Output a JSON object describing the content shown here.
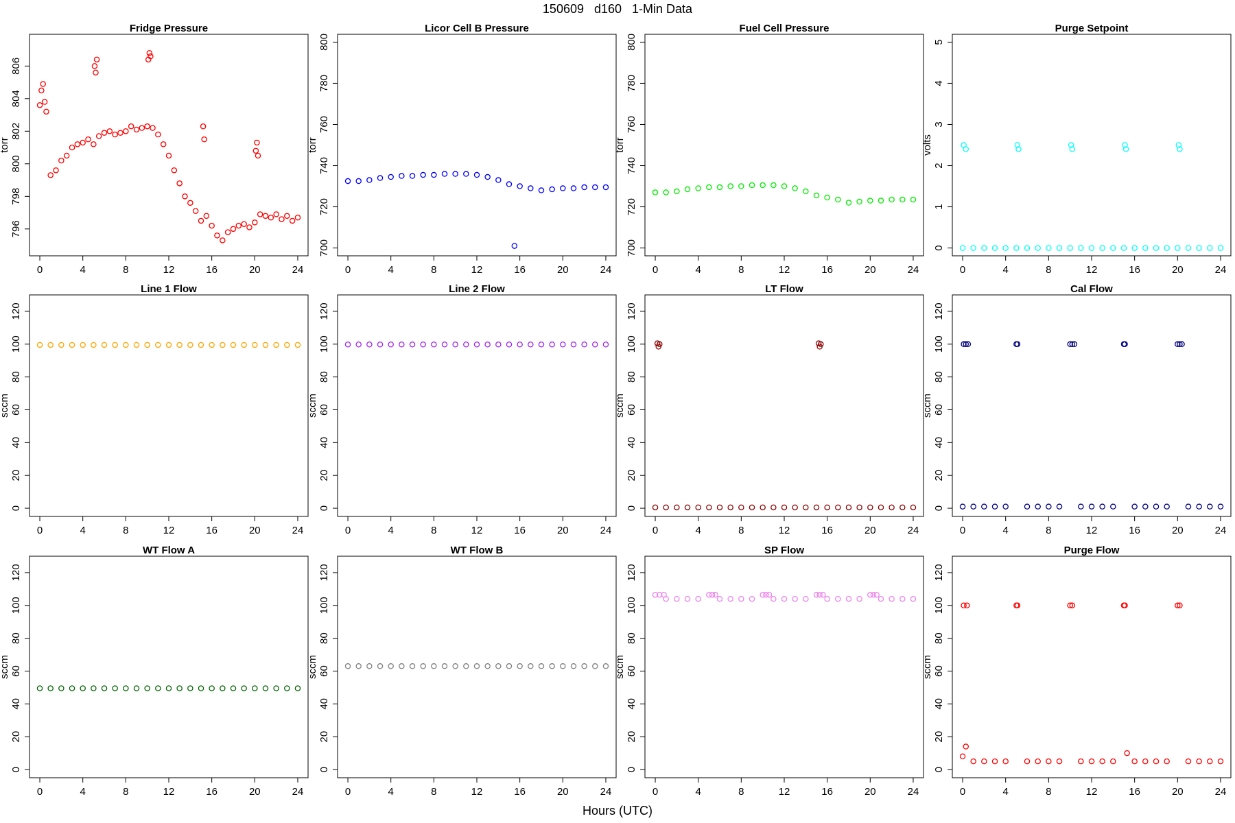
{
  "title": "150609   d160   1-Min Data",
  "xlabel": "Hours (UTC)",
  "chart_data": [
    {
      "type": "scatter",
      "title": "Fridge Pressure",
      "ylabel": "torr",
      "color": "red",
      "x": [
        0,
        0.15,
        0.3,
        0.45,
        0.6,
        1,
        1.5,
        2,
        2.5,
        3,
        3.5,
        4,
        4.5,
        5,
        5.1,
        5.2,
        5.3,
        5.5,
        6,
        6.5,
        7,
        7.5,
        8,
        8.5,
        9,
        9.5,
        10,
        10.1,
        10.2,
        10.3,
        10.5,
        11,
        11.5,
        12,
        12.5,
        13,
        13.5,
        14,
        14.5,
        15,
        15.2,
        15.3,
        15.5,
        16,
        16.5,
        17,
        17.5,
        18,
        18.5,
        19,
        19.5,
        20,
        20.1,
        20.2,
        20.3,
        20.5,
        21,
        21.5,
        22,
        22.5,
        23,
        23.5,
        24
      ],
      "values": [
        803.6,
        804.5,
        804.9,
        803.8,
        803.2,
        799.3,
        799.6,
        800.2,
        800.5,
        801,
        801.2,
        801.3,
        801.5,
        801.2,
        806,
        805.6,
        806.4,
        801.7,
        801.9,
        802,
        801.8,
        801.9,
        802,
        802.3,
        802.1,
        802.2,
        802.3,
        806.4,
        806.8,
        806.6,
        802.2,
        801.8,
        801.2,
        800.5,
        799.6,
        798.8,
        798,
        797.6,
        797.1,
        796.5,
        802.3,
        801.5,
        796.8,
        796.2,
        795.6,
        795.3,
        795.8,
        796,
        796.2,
        796.3,
        796.1,
        796.4,
        800.8,
        801.3,
        800.5,
        796.9,
        796.8,
        796.7,
        796.9,
        796.6,
        796.8,
        796.5,
        796.7
      ],
      "xlim": [
        -0.96,
        24.96
      ],
      "xticks": [
        0,
        4,
        8,
        12,
        16,
        20,
        24
      ],
      "ylim": [
        794.35,
        807.95
      ],
      "yticks": [
        796,
        798,
        800,
        802,
        804,
        806
      ]
    },
    {
      "type": "scatter",
      "title": "Licor Cell B Pressure",
      "ylabel": "torr",
      "color": "blue",
      "x": [
        0,
        1,
        2,
        3,
        4,
        5,
        6,
        7,
        8,
        9,
        10,
        11,
        12,
        13,
        14,
        15,
        15.5,
        16,
        17,
        18,
        19,
        20,
        21,
        22,
        23,
        24
      ],
      "values": [
        732.5,
        732.5,
        733,
        734,
        734.5,
        735,
        735,
        735.5,
        735.5,
        736,
        736,
        736,
        735.5,
        734.5,
        733,
        731,
        701,
        730,
        729,
        728,
        728.5,
        729,
        729,
        729.5,
        729.5,
        729.5
      ],
      "xlim": [
        -0.96,
        24.96
      ],
      "xticks": [
        0,
        4,
        8,
        12,
        16,
        20,
        24
      ],
      "ylim": [
        696.2,
        803.8
      ],
      "yticks": [
        700,
        720,
        740,
        760,
        780,
        800
      ]
    },
    {
      "type": "scatter",
      "title": "Fuel Cell Pressure",
      "ylabel": "torr",
      "color": "#00ee00",
      "x": [
        0,
        1,
        2,
        3,
        4,
        5,
        6,
        7,
        8,
        9,
        10,
        11,
        12,
        13,
        14,
        15,
        16,
        17,
        18,
        19,
        20,
        21,
        22,
        23,
        24
      ],
      "values": [
        727,
        727,
        727.5,
        728.5,
        729,
        729.5,
        729.5,
        730,
        730,
        730.5,
        730.5,
        730.5,
        730,
        729,
        727.5,
        725.5,
        724.5,
        723.5,
        722,
        722.5,
        723,
        723,
        723.5,
        723.5,
        723.5
      ],
      "xlim": [
        -0.96,
        24.96
      ],
      "xticks": [
        0,
        4,
        8,
        12,
        16,
        20,
        24
      ],
      "ylim": [
        696.2,
        803.8
      ],
      "yticks": [
        700,
        720,
        740,
        760,
        780,
        800
      ]
    },
    {
      "type": "scatter",
      "title": "Purge Setpoint",
      "ylabel": "volts",
      "color": "cyan",
      "x": [
        0,
        0.1,
        0.3,
        1,
        2,
        3,
        4,
        5,
        5.1,
        5.2,
        6,
        7,
        8,
        9,
        10,
        10.1,
        10.2,
        11,
        12,
        13,
        14,
        15,
        15.1,
        15.2,
        16,
        17,
        18,
        19,
        20,
        20.1,
        20.2,
        21,
        22,
        23,
        24
      ],
      "values": [
        0,
        2.5,
        2.4,
        0,
        0,
        0,
        0,
        0,
        2.5,
        2.4,
        0,
        0,
        0,
        0,
        0,
        2.5,
        2.4,
        0,
        0,
        0,
        0,
        0,
        2.5,
        2.4,
        0,
        0,
        0,
        0,
        0,
        2.5,
        2.4,
        0,
        0,
        0,
        0
      ],
      "xlim": [
        -0.96,
        24.96
      ],
      "xticks": [
        0,
        4,
        8,
        12,
        16,
        20,
        24
      ],
      "ylim": [
        -0.19,
        5.19
      ],
      "yticks": [
        0,
        1,
        2,
        3,
        4,
        5
      ]
    },
    {
      "type": "scatter",
      "title": "Line 1 Flow",
      "ylabel": "sccm",
      "color": "orange",
      "x": [
        0,
        1,
        2,
        3,
        4,
        5,
        6,
        7,
        8,
        9,
        10,
        11,
        12,
        13,
        14,
        15,
        16,
        17,
        18,
        19,
        20,
        21,
        22,
        23,
        24
      ],
      "values": [
        99.5,
        99.5,
        99.5,
        99.5,
        99.5,
        99.5,
        99.5,
        99.5,
        99.5,
        99.5,
        99.5,
        99.5,
        99.5,
        99.5,
        99.5,
        99.5,
        99.5,
        99.5,
        99.5,
        99.5,
        99.5,
        99.5,
        99.5,
        99.5,
        99.5
      ],
      "xlim": [
        -0.96,
        24.96
      ],
      "xticks": [
        0,
        4,
        8,
        12,
        16,
        20,
        24
      ],
      "ylim": [
        -5,
        130
      ],
      "yticks": [
        0,
        20,
        40,
        60,
        80,
        100,
        120
      ]
    },
    {
      "type": "scatter",
      "title": "Line 2 Flow",
      "ylabel": "sccm",
      "color": "#a020f0",
      "x": [
        0,
        1,
        2,
        3,
        4,
        5,
        6,
        7,
        8,
        9,
        10,
        11,
        12,
        13,
        14,
        15,
        16,
        17,
        18,
        19,
        20,
        21,
        22,
        23,
        24
      ],
      "values": [
        99.8,
        99.8,
        99.8,
        99.8,
        99.8,
        99.8,
        99.8,
        99.8,
        99.8,
        99.8,
        99.8,
        99.8,
        99.8,
        99.8,
        99.8,
        99.8,
        99.8,
        99.8,
        99.8,
        99.8,
        99.8,
        99.8,
        99.8,
        99.8,
        99.8
      ],
      "xlim": [
        -0.96,
        24.96
      ],
      "xticks": [
        0,
        4,
        8,
        12,
        16,
        20,
        24
      ],
      "ylim": [
        -5,
        130
      ],
      "yticks": [
        0,
        20,
        40,
        60,
        80,
        100,
        120
      ]
    },
    {
      "type": "scatter",
      "title": "LT Flow",
      "ylabel": "sccm",
      "color": "darkred",
      "x": [
        0,
        0.2,
        0.3,
        0.4,
        1,
        2,
        3,
        4,
        5,
        6,
        7,
        8,
        9,
        10,
        11,
        12,
        13,
        14,
        15,
        15.2,
        15.3,
        15.4,
        16,
        17,
        18,
        19,
        20,
        21,
        22,
        23,
        24
      ],
      "values": [
        0.5,
        100.5,
        98.5,
        100,
        0.5,
        0.5,
        0.5,
        0.5,
        0.5,
        0.5,
        0.5,
        0.5,
        0.5,
        0.5,
        0.5,
        0.5,
        0.5,
        0.5,
        0.5,
        100.5,
        98.5,
        100,
        0.5,
        0.5,
        0.5,
        0.5,
        0.5,
        0.5,
        0.5,
        0.5,
        0.5
      ],
      "xlim": [
        -0.96,
        24.96
      ],
      "xticks": [
        0,
        4,
        8,
        12,
        16,
        20,
        24
      ],
      "ylim": [
        -5,
        130
      ],
      "yticks": [
        0,
        20,
        40,
        60,
        80,
        100,
        120
      ]
    },
    {
      "type": "scatter",
      "title": "Cal Flow",
      "ylabel": "sccm",
      "color": "navy",
      "x": [
        0,
        0.1,
        0.3,
        0.5,
        1,
        2,
        3,
        4,
        5,
        5.1,
        6,
        7,
        8,
        9,
        10,
        10.2,
        10.4,
        11,
        12,
        13,
        14,
        15,
        15.1,
        16,
        17,
        18,
        19,
        20,
        20.2,
        20.4,
        21,
        22,
        23,
        24
      ],
      "values": [
        1,
        100,
        100,
        100,
        1,
        1,
        1,
        1,
        100,
        100,
        1,
        1,
        1,
        1,
        100,
        100,
        100,
        1,
        1,
        1,
        1,
        100,
        100,
        1,
        1,
        1,
        1,
        100,
        100,
        100,
        1,
        1,
        1,
        1
      ],
      "xlim": [
        -0.96,
        24.96
      ],
      "xticks": [
        0,
        4,
        8,
        12,
        16,
        20,
        24
      ],
      "ylim": [
        -5,
        130
      ],
      "yticks": [
        0,
        20,
        40,
        60,
        80,
        100,
        120
      ]
    },
    {
      "type": "scatter",
      "title": "WT Flow A",
      "ylabel": "sccm",
      "color": "darkgreen",
      "x": [
        0,
        1,
        2,
        3,
        4,
        5,
        6,
        7,
        8,
        9,
        10,
        11,
        12,
        13,
        14,
        15,
        16,
        17,
        18,
        19,
        20,
        21,
        22,
        23,
        24
      ],
      "values": [
        49.5,
        49.5,
        49.5,
        49.5,
        49.5,
        49.5,
        49.5,
        49.5,
        49.5,
        49.5,
        49.5,
        49.5,
        49.5,
        49.5,
        49.5,
        49.5,
        49.5,
        49.5,
        49.5,
        49.5,
        49.5,
        49.5,
        49.5,
        49.5,
        49.5
      ],
      "xlim": [
        -0.96,
        24.96
      ],
      "xticks": [
        0,
        4,
        8,
        12,
        16,
        20,
        24
      ],
      "ylim": [
        -5,
        130
      ],
      "yticks": [
        0,
        20,
        40,
        60,
        80,
        100,
        120
      ]
    },
    {
      "type": "scatter",
      "title": "WT Flow B",
      "ylabel": "sccm",
      "color": "gray",
      "x": [
        0,
        1,
        2,
        3,
        4,
        5,
        6,
        7,
        8,
        9,
        10,
        11,
        12,
        13,
        14,
        15,
        16,
        17,
        18,
        19,
        20,
        21,
        22,
        23,
        24
      ],
      "values": [
        63,
        63,
        63,
        63,
        63,
        63,
        63,
        63,
        63,
        63,
        63,
        63,
        63,
        63,
        63,
        63,
        63,
        63,
        63,
        63,
        63,
        63,
        63,
        63,
        63
      ],
      "xlim": [
        -0.96,
        24.96
      ],
      "xticks": [
        0,
        4,
        8,
        12,
        16,
        20,
        24
      ],
      "ylim": [
        -5,
        130
      ],
      "yticks": [
        0,
        20,
        40,
        60,
        80,
        100,
        120
      ]
    },
    {
      "type": "scatter",
      "title": "SP Flow",
      "ylabel": "sccm",
      "color": "violet",
      "x": [
        0,
        0.4,
        0.8,
        1,
        2,
        3,
        4,
        5,
        5.3,
        5.6,
        6,
        7,
        8,
        9,
        10,
        10.3,
        10.6,
        11,
        12,
        13,
        14,
        15,
        15.3,
        15.6,
        16,
        17,
        18,
        19,
        20,
        20.3,
        20.6,
        21,
        22,
        23,
        24
      ],
      "values": [
        106.5,
        106.5,
        106.5,
        104,
        104,
        104,
        104,
        106.5,
        106.5,
        106.5,
        104,
        104,
        104,
        104,
        106.5,
        106.5,
        106.5,
        104,
        104,
        104,
        104,
        106.5,
        106.5,
        106.5,
        104,
        104,
        104,
        104,
        106.5,
        106.5,
        106.5,
        104,
        104,
        104,
        104
      ],
      "xlim": [
        -0.96,
        24.96
      ],
      "xticks": [
        0,
        4,
        8,
        12,
        16,
        20,
        24
      ],
      "ylim": [
        -5,
        130
      ],
      "yticks": [
        0,
        20,
        40,
        60,
        80,
        100,
        120
      ]
    },
    {
      "type": "scatter",
      "title": "Purge Flow",
      "ylabel": "sccm",
      "color": "red",
      "x": [
        0,
        0.1,
        0.3,
        0.4,
        1,
        2,
        3,
        4,
        5,
        5.1,
        6,
        7,
        8,
        9,
        10,
        10.2,
        11,
        12,
        13,
        14,
        15,
        15.1,
        15.3,
        16,
        17,
        18,
        19,
        20,
        20.2,
        21,
        22,
        23,
        24
      ],
      "values": [
        8,
        100,
        14,
        100,
        5,
        5,
        5,
        5,
        100,
        100,
        5,
        5,
        5,
        5,
        100,
        100,
        5,
        5,
        5,
        5,
        100,
        100,
        10,
        5,
        5,
        5,
        5,
        100,
        100,
        5,
        5,
        5,
        5
      ],
      "xlim": [
        -0.96,
        24.96
      ],
      "xticks": [
        0,
        4,
        8,
        12,
        16,
        20,
        24
      ],
      "ylim": [
        -5,
        130
      ],
      "yticks": [
        0,
        20,
        40,
        60,
        80,
        100,
        120
      ]
    }
  ]
}
